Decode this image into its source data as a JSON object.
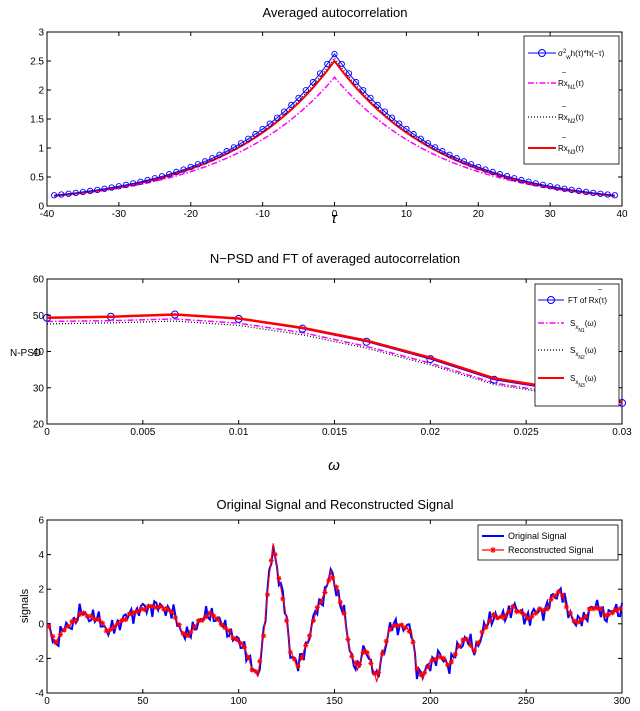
{
  "colors": {
    "blue": "#0000ff",
    "magenta": "#ff00ff",
    "black": "#000000",
    "red": "#ff0000"
  },
  "chart_data": [
    {
      "type": "line",
      "title": "Averaged autocorrelation",
      "xlabel": "τ",
      "ylabel": "",
      "xlim": [
        -40,
        40
      ],
      "ylim": [
        0,
        3
      ],
      "xticks": [
        -40,
        -30,
        -20,
        -10,
        0,
        10,
        20,
        30,
        40
      ],
      "yticks": [
        0,
        0.5,
        1,
        1.5,
        2,
        2.5,
        3
      ],
      "ytick_labels": [
        "0",
        "0.5",
        "1",
        "1.5",
        "2",
        "2.5",
        "3"
      ],
      "legend_position": "top-right",
      "series": [
        {
          "name": "σw² h(τ)*h(−τ)",
          "legend_parts": {
            "main": "σ",
            "sup": "2",
            "sub": "w",
            "rest": "h(τ)*h(−τ)"
          },
          "style": "blue-circles",
          "peak": 2.62,
          "decay": 0.068
        },
        {
          "name": "Rx̄N1(τ)",
          "legend_parts": {
            "main": "Rx",
            "sub": "N1",
            "rest": "(τ)"
          },
          "style": "magenta-dashdot",
          "peak": 2.22,
          "decay": 0.066
        },
        {
          "name": "Rx̄N2(τ)",
          "legend_parts": {
            "main": "Rx",
            "sub": "N2",
            "rest": "(τ)"
          },
          "style": "black-dotted",
          "peak": 2.55,
          "decay": 0.068
        },
        {
          "name": "Rx̄N3(τ)",
          "legend_parts": {
            "main": "Rx",
            "sub": "N3",
            "rest": "(τ)"
          },
          "style": "red-solid",
          "peak": 2.5,
          "decay": 0.068
        }
      ]
    },
    {
      "type": "line",
      "title": "N−PSD and FT of averaged autocorrelation",
      "xlabel": "ω",
      "ylabel": "N-PSD",
      "xlim": [
        0,
        0.03
      ],
      "ylim": [
        20,
        60
      ],
      "xticks": [
        0,
        0.005,
        0.01,
        0.015,
        0.02,
        0.025,
        0.03
      ],
      "xtick_labels": [
        "0",
        "0.005",
        "0.01",
        "0.015",
        "0.02",
        "0.025",
        "0.03"
      ],
      "yticks": [
        20,
        30,
        40,
        50,
        60
      ],
      "legend_position": "top-right",
      "x": [
        0,
        0.00333,
        0.00667,
        0.01,
        0.01333,
        0.01667,
        0.02,
        0.02333,
        0.02667,
        0.03
      ],
      "series": [
        {
          "name": "FT of Rx̄(τ)",
          "legend_parts": {
            "main": "FT of Rx(τ)"
          },
          "style": "blue-circles",
          "values": [
            49.3,
            49.6,
            50.2,
            49.0,
            46.3,
            42.7,
            37.9,
            32.2,
            29.4,
            25.8
          ]
        },
        {
          "name": "SxN1(ω)",
          "legend_parts": {
            "main": "S",
            "sub": "x",
            "subsub": "N1",
            "rest": "(ω)"
          },
          "style": "magenta-dashdot",
          "values": [
            48.3,
            48.5,
            49.0,
            47.8,
            45.2,
            41.4,
            36.8,
            31.3,
            28.5,
            25.4
          ]
        },
        {
          "name": "SxN2(ω)",
          "legend_parts": {
            "main": "S",
            "sub": "x",
            "subsub": "N2",
            "rest": "(ω)"
          },
          "style": "black-dotted",
          "values": [
            47.6,
            47.9,
            48.4,
            47.2,
            44.6,
            40.9,
            36.3,
            30.9,
            28.1,
            25.2
          ]
        },
        {
          "name": "SxN3(ω)",
          "legend_parts": {
            "main": "S",
            "sub": "x",
            "subsub": "N3",
            "rest": "(ω)"
          },
          "style": "red-solid",
          "values": [
            49.3,
            49.6,
            50.2,
            49.1,
            46.5,
            43.0,
            38.3,
            32.6,
            29.8,
            26.2
          ]
        }
      ]
    },
    {
      "type": "line",
      "title": "Original Signal and Reconstructed Signal",
      "xlabel": "",
      "ylabel": "signals",
      "xlim": [
        0,
        300
      ],
      "ylim": [
        -4,
        6
      ],
      "xticks": [
        0,
        50,
        100,
        150,
        200,
        250,
        300
      ],
      "yticks": [
        -4,
        -2,
        0,
        2,
        4,
        6
      ],
      "legend_position": "top-right",
      "x_range": [
        1,
        300
      ],
      "anchors": [
        [
          0,
          0.2
        ],
        [
          4,
          -1.2
        ],
        [
          8,
          -0.4
        ],
        [
          14,
          0.1
        ],
        [
          18,
          0.7
        ],
        [
          22,
          0.4
        ],
        [
          28,
          0.2
        ],
        [
          32,
          -0.5
        ],
        [
          36,
          -0.1
        ],
        [
          40,
          0.3
        ],
        [
          45,
          0.6
        ],
        [
          50,
          0.9
        ],
        [
          56,
          1.0
        ],
        [
          62,
          0.9
        ],
        [
          66,
          0.6
        ],
        [
          70,
          -0.4
        ],
        [
          74,
          -0.7
        ],
        [
          78,
          0.0
        ],
        [
          82,
          0.4
        ],
        [
          86,
          0.6
        ],
        [
          90,
          0.1
        ],
        [
          94,
          -0.3
        ],
        [
          98,
          -0.9
        ],
        [
          103,
          -1.3
        ],
        [
          107,
          -2.6
        ],
        [
          110,
          -3.0
        ],
        [
          113,
          -0.6
        ],
        [
          116,
          2.8
        ],
        [
          118,
          4.6
        ],
        [
          121,
          2.6
        ],
        [
          124,
          1.0
        ],
        [
          127,
          -1.6
        ],
        [
          131,
          -2.5
        ],
        [
          136,
          -1.0
        ],
        [
          140,
          0.6
        ],
        [
          145,
          1.8
        ],
        [
          148,
          3.0
        ],
        [
          151,
          2.0
        ],
        [
          155,
          0.6
        ],
        [
          158,
          -1.6
        ],
        [
          162,
          -2.6
        ],
        [
          166,
          -1.4
        ],
        [
          169,
          -2.2
        ],
        [
          172,
          -3.3
        ],
        [
          175,
          -1.8
        ],
        [
          179,
          -0.2
        ],
        [
          185,
          -0.1
        ],
        [
          190,
          -0.4
        ],
        [
          193,
          -2.6
        ],
        [
          196,
          -3.1
        ],
        [
          200,
          -2.2
        ],
        [
          205,
          -1.9
        ],
        [
          210,
          -2.4
        ],
        [
          215,
          -1.3
        ],
        [
          219,
          -0.8
        ],
        [
          223,
          -1.6
        ],
        [
          228,
          -0.3
        ],
        [
          233,
          0.5
        ],
        [
          238,
          0.3
        ],
        [
          243,
          1.0
        ],
        [
          247,
          0.6
        ],
        [
          252,
          0.3
        ],
        [
          256,
          0.8
        ],
        [
          260,
          0.7
        ],
        [
          264,
          1.6
        ],
        [
          268,
          1.9
        ],
        [
          272,
          0.7
        ],
        [
          276,
          0.1
        ],
        [
          280,
          0.2
        ],
        [
          284,
          1.0
        ],
        [
          288,
          0.9
        ],
        [
          292,
          0.4
        ],
        [
          296,
          0.8
        ],
        [
          300,
          0.8
        ]
      ],
      "series": [
        {
          "name": "Original Signal",
          "style": "blue-solid",
          "noise": 0.55
        },
        {
          "name": "Reconstructed Signal",
          "style": "red-stars",
          "noise": 0.12
        }
      ]
    }
  ]
}
